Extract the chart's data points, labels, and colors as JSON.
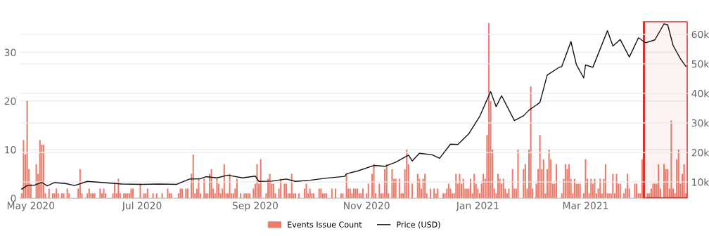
{
  "chart_data": {
    "type": "bar",
    "x": [
      "2020-04-26",
      "2020-04-27",
      "2020-04-28",
      "2020-04-29",
      "2020-04-30",
      "2020-05-01",
      "2020-05-02",
      "2020-05-03",
      "2020-05-04",
      "2020-05-05",
      "2020-05-06",
      "2020-05-07",
      "2020-05-08",
      "2020-05-09",
      "2020-05-10",
      "2020-05-11",
      "2020-05-12",
      "2020-05-13",
      "2020-05-14",
      "2020-05-15",
      "2020-05-16",
      "2020-05-17",
      "2020-05-18",
      "2020-05-19",
      "2020-05-20",
      "2020-05-21",
      "2020-05-22",
      "2020-05-23",
      "2020-05-24",
      "2020-05-25",
      "2020-05-26",
      "2020-05-27",
      "2020-05-28",
      "2020-05-29",
      "2020-05-30",
      "2020-05-31",
      "2020-06-01",
      "2020-06-02",
      "2020-06-03",
      "2020-06-04",
      "2020-06-05",
      "2020-06-06",
      "2020-06-07",
      "2020-06-08",
      "2020-06-09",
      "2020-06-10",
      "2020-06-11",
      "2020-06-12",
      "2020-06-13",
      "2020-06-14",
      "2020-06-15",
      "2020-06-16",
      "2020-06-17",
      "2020-06-18",
      "2020-06-19",
      "2020-06-20",
      "2020-06-21",
      "2020-06-22",
      "2020-06-23",
      "2020-06-24",
      "2020-06-25",
      "2020-06-26",
      "2020-06-27",
      "2020-06-28",
      "2020-06-29",
      "2020-06-30",
      "2020-07-01",
      "2020-07-02",
      "2020-07-03",
      "2020-07-04",
      "2020-07-05",
      "2020-07-06",
      "2020-07-07",
      "2020-07-08",
      "2020-07-09",
      "2020-07-10",
      "2020-07-11",
      "2020-07-12",
      "2020-07-13",
      "2020-07-14",
      "2020-07-15",
      "2020-07-16",
      "2020-07-17",
      "2020-07-18",
      "2020-07-19",
      "2020-07-20",
      "2020-07-21",
      "2020-07-22",
      "2020-07-23",
      "2020-07-24",
      "2020-07-25",
      "2020-07-26",
      "2020-07-27",
      "2020-07-28",
      "2020-07-29",
      "2020-07-30",
      "2020-07-31",
      "2020-08-01",
      "2020-08-02",
      "2020-08-03",
      "2020-08-04",
      "2020-08-05",
      "2020-08-06",
      "2020-08-07",
      "2020-08-08",
      "2020-08-09",
      "2020-08-10",
      "2020-08-11",
      "2020-08-12",
      "2020-08-13",
      "2020-08-14",
      "2020-08-15",
      "2020-08-16",
      "2020-08-17",
      "2020-08-18",
      "2020-08-19",
      "2020-08-20",
      "2020-08-21",
      "2020-08-22",
      "2020-08-23",
      "2020-08-24",
      "2020-08-25",
      "2020-08-26",
      "2020-08-27",
      "2020-08-28",
      "2020-08-29",
      "2020-08-30",
      "2020-08-31",
      "2020-09-01",
      "2020-09-02",
      "2020-09-03",
      "2020-09-04",
      "2020-09-05",
      "2020-09-06",
      "2020-09-07",
      "2020-09-08",
      "2020-09-09",
      "2020-09-10",
      "2020-09-11",
      "2020-09-12",
      "2020-09-13",
      "2020-09-14",
      "2020-09-15",
      "2020-09-16",
      "2020-09-17",
      "2020-09-18",
      "2020-09-19",
      "2020-09-20",
      "2020-09-21",
      "2020-09-22",
      "2020-09-23",
      "2020-09-24",
      "2020-09-25",
      "2020-09-26",
      "2020-09-27",
      "2020-09-28",
      "2020-09-29",
      "2020-09-30",
      "2020-10-01",
      "2020-10-02",
      "2020-10-03",
      "2020-10-04",
      "2020-10-05",
      "2020-10-06",
      "2020-10-07",
      "2020-10-08",
      "2020-10-09",
      "2020-10-10",
      "2020-10-11",
      "2020-10-12",
      "2020-10-13",
      "2020-10-14",
      "2020-10-15",
      "2020-10-16",
      "2020-10-17",
      "2020-10-18",
      "2020-10-19",
      "2020-10-20",
      "2020-10-21",
      "2020-10-22",
      "2020-10-23",
      "2020-10-24",
      "2020-10-25",
      "2020-10-26",
      "2020-10-27",
      "2020-10-28",
      "2020-10-29",
      "2020-10-30",
      "2020-10-31",
      "2020-11-01",
      "2020-11-02",
      "2020-11-03",
      "2020-11-04",
      "2020-11-05",
      "2020-11-06",
      "2020-11-07",
      "2020-11-08",
      "2020-11-09",
      "2020-11-10",
      "2020-11-11",
      "2020-11-12",
      "2020-11-13",
      "2020-11-14",
      "2020-11-15",
      "2020-11-16",
      "2020-11-17",
      "2020-11-18",
      "2020-11-19",
      "2020-11-20",
      "2020-11-21",
      "2020-11-22",
      "2020-11-23",
      "2020-11-24",
      "2020-11-25",
      "2020-11-26",
      "2020-11-27",
      "2020-11-28",
      "2020-11-29",
      "2020-11-30",
      "2020-12-01",
      "2020-12-02",
      "2020-12-03",
      "2020-12-04",
      "2020-12-05",
      "2020-12-06",
      "2020-12-07",
      "2020-12-08",
      "2020-12-09",
      "2020-12-10",
      "2020-12-11",
      "2020-12-12",
      "2020-12-13",
      "2020-12-14",
      "2020-12-15",
      "2020-12-16",
      "2020-12-17",
      "2020-12-18",
      "2020-12-19",
      "2020-12-20",
      "2020-12-21",
      "2020-12-22",
      "2020-12-23",
      "2020-12-24",
      "2020-12-25",
      "2020-12-26",
      "2020-12-27",
      "2020-12-28",
      "2020-12-29",
      "2020-12-30",
      "2020-12-31",
      "2021-01-01",
      "2021-01-02",
      "2021-01-03",
      "2021-01-04",
      "2021-01-05",
      "2021-01-06",
      "2021-01-07",
      "2021-01-08",
      "2021-01-09",
      "2021-01-10",
      "2021-01-11",
      "2021-01-12",
      "2021-01-13",
      "2021-01-14",
      "2021-01-15",
      "2021-01-16",
      "2021-01-17",
      "2021-01-18",
      "2021-01-19",
      "2021-01-20",
      "2021-01-21",
      "2021-01-22",
      "2021-01-23",
      "2021-01-24",
      "2021-01-25",
      "2021-01-26",
      "2021-01-27",
      "2021-01-28",
      "2021-01-29",
      "2021-01-30",
      "2021-01-31",
      "2021-02-01",
      "2021-02-02",
      "2021-02-03",
      "2021-02-04",
      "2021-02-05",
      "2021-02-06",
      "2021-02-07",
      "2021-02-08",
      "2021-02-09",
      "2021-02-10",
      "2021-02-11",
      "2021-02-12",
      "2021-02-13",
      "2021-02-14",
      "2021-02-15",
      "2021-02-16",
      "2021-02-17",
      "2021-02-18",
      "2021-02-19",
      "2021-02-20",
      "2021-02-21",
      "2021-02-22",
      "2021-02-23",
      "2021-02-24",
      "2021-02-25",
      "2021-02-26",
      "2021-02-27",
      "2021-02-28",
      "2021-03-01",
      "2021-03-02",
      "2021-03-03",
      "2021-03-04",
      "2021-03-05",
      "2021-03-06",
      "2021-03-07",
      "2021-03-08",
      "2021-03-09",
      "2021-03-10",
      "2021-03-11",
      "2021-03-12",
      "2021-03-13",
      "2021-03-14",
      "2021-03-15",
      "2021-03-16",
      "2021-03-17",
      "2021-03-18",
      "2021-03-19",
      "2021-03-20",
      "2021-03-21",
      "2021-03-22",
      "2021-03-23",
      "2021-03-24",
      "2021-03-25",
      "2021-03-26",
      "2021-03-27",
      "2021-03-28",
      "2021-03-29",
      "2021-03-30",
      "2021-03-31",
      "2021-04-01",
      "2021-04-02",
      "2021-04-03",
      "2021-04-04",
      "2021-04-05",
      "2021-04-06",
      "2021-04-07",
      "2021-04-08",
      "2021-04-09",
      "2021-04-10",
      "2021-04-11",
      "2021-04-12",
      "2021-04-13",
      "2021-04-14",
      "2021-04-15",
      "2021-04-16",
      "2021-04-17",
      "2021-04-18",
      "2021-04-19",
      "2021-04-20",
      "2021-04-21",
      "2021-04-22",
      "2021-04-23",
      "2021-04-24",
      "2021-04-25"
    ],
    "series": [
      {
        "name": "Events Issue Count",
        "color": "#ee7a6a",
        "values": [
          1,
          12,
          9,
          20,
          6,
          3,
          0,
          0,
          7,
          5,
          12,
          11,
          11,
          1,
          0,
          2,
          0,
          1,
          1,
          2,
          1,
          0,
          1,
          1,
          0,
          2,
          1,
          0,
          0,
          0,
          0,
          2,
          6,
          1,
          0,
          0,
          1,
          2,
          1,
          1,
          1,
          0,
          0,
          2,
          1,
          2,
          1,
          0,
          0,
          0,
          1,
          3,
          1,
          4,
          1,
          0,
          1,
          1,
          1,
          1,
          2,
          2,
          0,
          0,
          0,
          3,
          0,
          1,
          1,
          2,
          0,
          0,
          1,
          0,
          1,
          0,
          0,
          1,
          0,
          0,
          2,
          1,
          1,
          0,
          0,
          0,
          1,
          2,
          2,
          0,
          2,
          2,
          0,
          5,
          9,
          1,
          2,
          4,
          1,
          0,
          4,
          1,
          1,
          5,
          6,
          2,
          1,
          4,
          3,
          1,
          2,
          7,
          1,
          1,
          5,
          1,
          1,
          2,
          4,
          0,
          1,
          0,
          1,
          1,
          1,
          1,
          0,
          2,
          3,
          7,
          3,
          8,
          0,
          0,
          1,
          4,
          5,
          3,
          3,
          1,
          0,
          2,
          4,
          0,
          3,
          3,
          1,
          1,
          5,
          1,
          1,
          0,
          1,
          0,
          0,
          2,
          3,
          1,
          2,
          1,
          1,
          0,
          0,
          2,
          2,
          1,
          1,
          1,
          0,
          0,
          2,
          0,
          2,
          0,
          0,
          1,
          1,
          0,
          5,
          2,
          2,
          1,
          2,
          2,
          2,
          1,
          1,
          2,
          0,
          1,
          3,
          0,
          5,
          7,
          1,
          0,
          3,
          1,
          1,
          6,
          7,
          1,
          0,
          6,
          4,
          4,
          0,
          4,
          1,
          1,
          6,
          10,
          7,
          0,
          3,
          0,
          0,
          5,
          4,
          2,
          4,
          5,
          1,
          0,
          2,
          0,
          2,
          1,
          2,
          0,
          0,
          1,
          1,
          2,
          3,
          2,
          1,
          1,
          5,
          3,
          5,
          3,
          4,
          2,
          2,
          2,
          4,
          1,
          5,
          3,
          2,
          1,
          3,
          5,
          4,
          13,
          36,
          20,
          10,
          2,
          1,
          5,
          4,
          3,
          4,
          2,
          1,
          2,
          0,
          6,
          2,
          2,
          10,
          0,
          0,
          6,
          7,
          2,
          10,
          23,
          2,
          0,
          3,
          6,
          13,
          6,
          8,
          1,
          6,
          10,
          8,
          3,
          3,
          7,
          0,
          0,
          1,
          4,
          7,
          6,
          7,
          4,
          1,
          4,
          3,
          3,
          3,
          0,
          1,
          8,
          4,
          1,
          4,
          3,
          4,
          1,
          2,
          4,
          1,
          4,
          7,
          1,
          1,
          1,
          5,
          1,
          5,
          3,
          3,
          0,
          1,
          2,
          5,
          2,
          0,
          0,
          3,
          3,
          1,
          1,
          8,
          0,
          0,
          1,
          1,
          2,
          3,
          3,
          3,
          7,
          2,
          0,
          7,
          6,
          6,
          2,
          16,
          2,
          1,
          8,
          10,
          3,
          5,
          7,
          1
        ]
      },
      {
        "name": "Price (USD)",
        "type": "line",
        "axis": "y2",
        "color": "#111111",
        "x": [
          "2020-04-26",
          "2020-04-29",
          "2020-05-03",
          "2020-05-07",
          "2020-05-10",
          "2020-05-14",
          "2020-05-20",
          "2020-05-25",
          "2020-06-01",
          "2020-06-10",
          "2020-06-20",
          "2020-07-01",
          "2020-07-10",
          "2020-07-20",
          "2020-07-27",
          "2020-08-02",
          "2020-08-05",
          "2020-08-11",
          "2020-08-17",
          "2020-08-25",
          "2020-09-01",
          "2020-09-03",
          "2020-09-10",
          "2020-09-18",
          "2020-09-23",
          "2020-10-01",
          "2020-10-10",
          "2020-10-20",
          "2020-10-21",
          "2020-10-27",
          "2020-11-05",
          "2020-11-11",
          "2020-11-17",
          "2020-11-24",
          "2020-11-26",
          "2020-11-30",
          "2020-12-07",
          "2020-12-11",
          "2020-12-17",
          "2020-12-21",
          "2020-12-27",
          "2021-01-02",
          "2021-01-08",
          "2021-01-11",
          "2021-01-14",
          "2021-01-21",
          "2021-01-26",
          "2021-01-29",
          "2021-02-04",
          "2021-02-08",
          "2021-02-14",
          "2021-02-16",
          "2021-02-21",
          "2021-02-24",
          "2021-02-28",
          "2021-03-01",
          "2021-03-05",
          "2021-03-13",
          "2021-03-16",
          "2021-03-20",
          "2021-03-25",
          "2021-03-30",
          "2021-04-03",
          "2021-04-08",
          "2021-04-13",
          "2021-04-15",
          "2021-04-18",
          "2021-04-22",
          "2021-04-25"
        ],
        "values": [
          7600,
          8800,
          8900,
          9900,
          8700,
          9800,
          9500,
          8800,
          10200,
          9800,
          9300,
          9200,
          9300,
          9200,
          11000,
          11100,
          11800,
          11400,
          12300,
          11400,
          12000,
          10200,
          10300,
          11000,
          10200,
          10600,
          11300,
          11900,
          12800,
          13700,
          15600,
          15300,
          16700,
          19100,
          17100,
          19700,
          19200,
          18000,
          22800,
          22700,
          26300,
          32200,
          40600,
          35500,
          39200,
          30800,
          32400,
          34300,
          36900,
          46200,
          48600,
          49100,
          57500,
          49700,
          45200,
          49600,
          48800,
          61200,
          56000,
          58200,
          52300,
          58800,
          57100,
          58100,
          63500,
          63200,
          56200,
          51700,
          49100
        ]
      }
    ],
    "xlim": [
      "2020-04-25",
      "2021-04-26"
    ],
    "xticks": [
      {
        "value": "2020-05-01",
        "label": "May 2020"
      },
      {
        "value": "2020-07-01",
        "label": "Jul 2020"
      },
      {
        "value": "2020-09-01",
        "label": "Sep 2020"
      },
      {
        "value": "2020-11-01",
        "label": "Nov 2020"
      },
      {
        "value": "2021-01-01",
        "label": "Jan 2021"
      },
      {
        "value": "2021-03-01",
        "label": "Mar 2021"
      }
    ],
    "ylim": [
      0,
      36.4
    ],
    "yticks": [
      0,
      10,
      20,
      30
    ],
    "y2lim": [
      4500,
      64400
    ],
    "y2ticks": [
      {
        "value": 10000,
        "label": "10k"
      },
      {
        "value": 20000,
        "label": "20k"
      },
      {
        "value": 30000,
        "label": "30k"
      },
      {
        "value": 40000,
        "label": "40k"
      },
      {
        "value": 50000,
        "label": "50k"
      },
      {
        "value": 60000,
        "label": "60k"
      }
    ],
    "bands": [
      {
        "axis": "x",
        "from": "2021-04-02",
        "to": "2021-04-26",
        "color": "#e0302a"
      }
    ],
    "grid": true,
    "legend": "bottom"
  }
}
